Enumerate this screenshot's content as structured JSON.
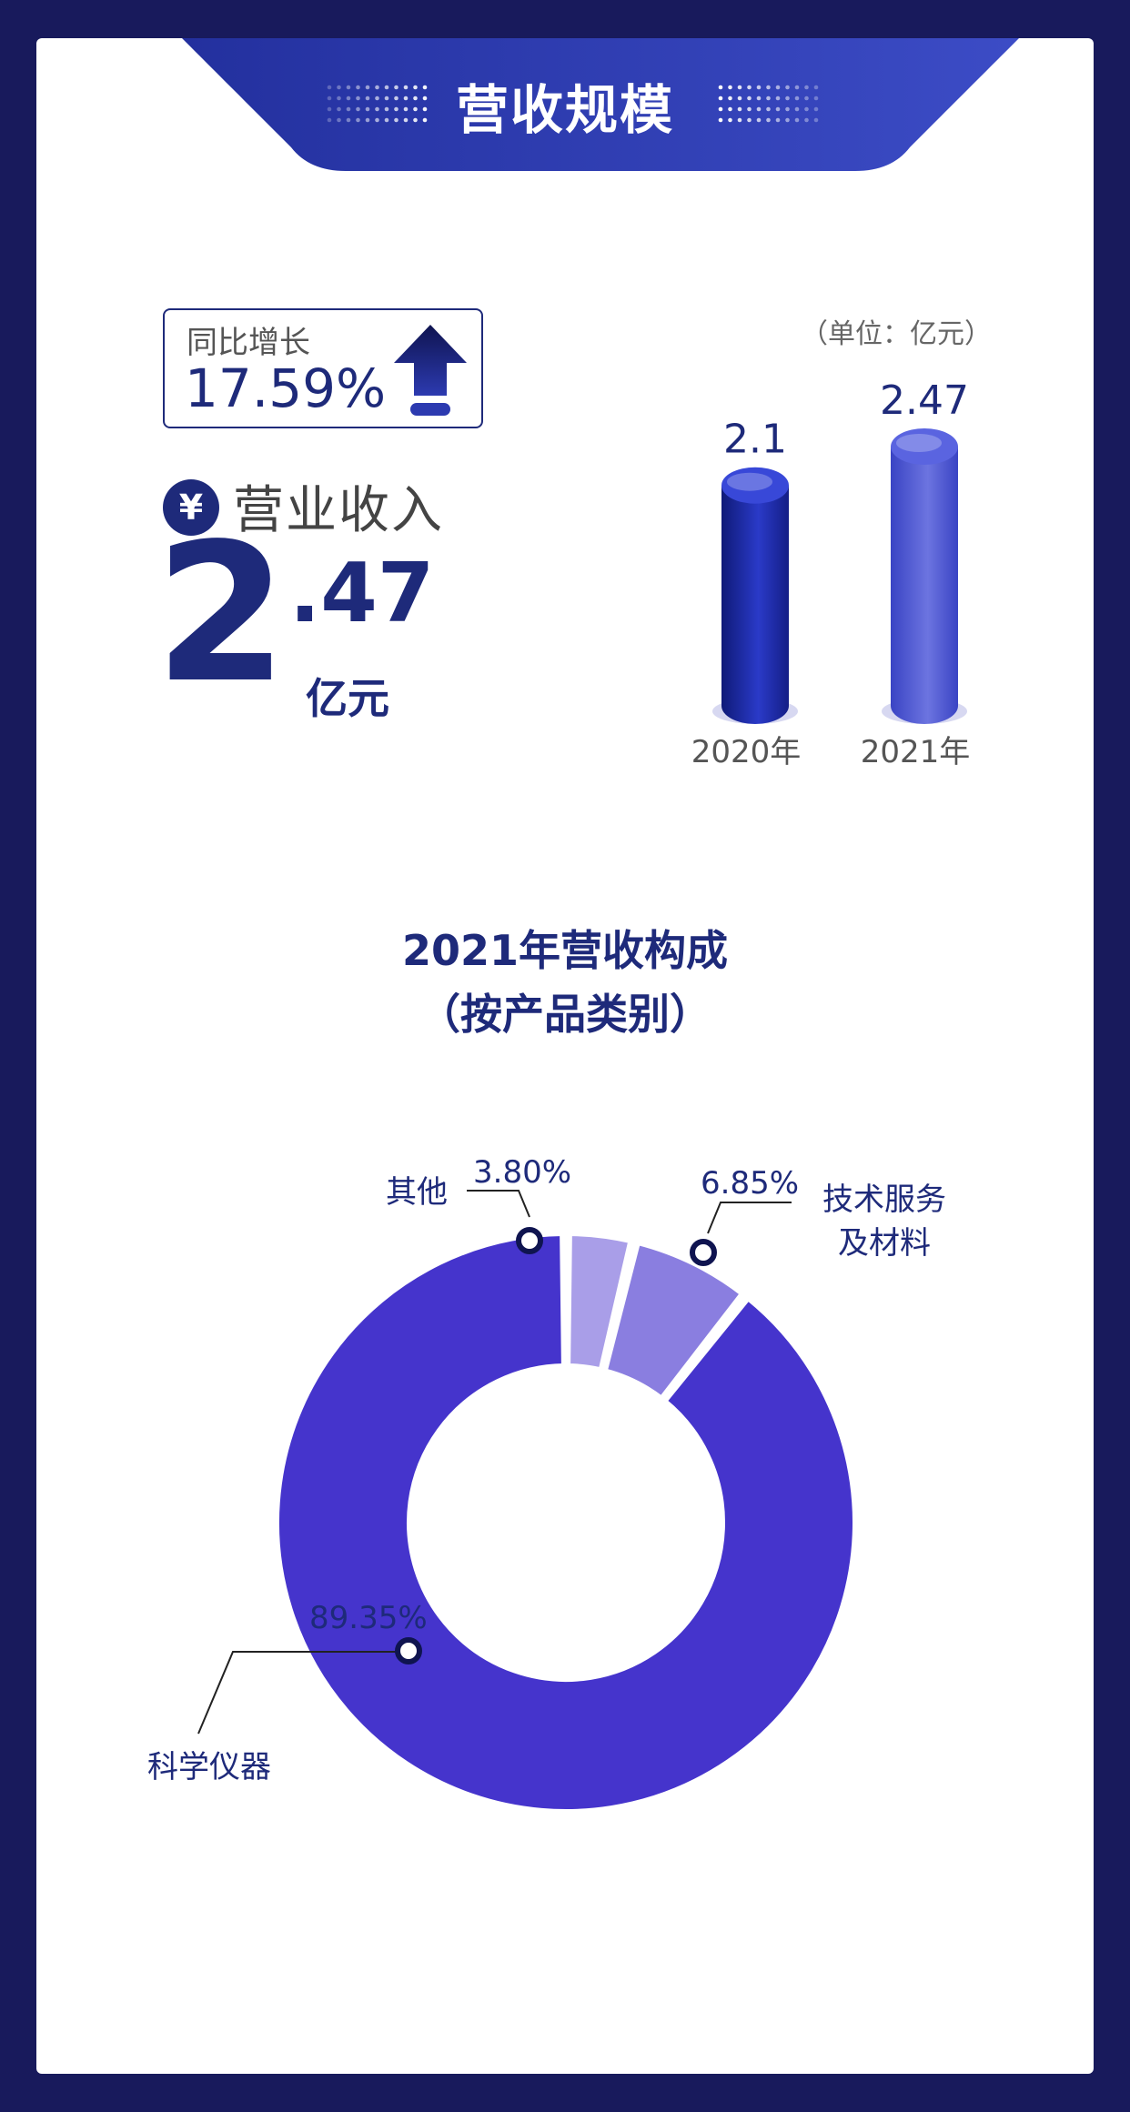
{
  "header": {
    "title": "营收规模"
  },
  "yoy": {
    "label": "同比增长",
    "value": "17.59%"
  },
  "revenue": {
    "label": "营业收入",
    "currency_symbol": "¥",
    "integer": "2",
    "decimal": ".47",
    "unit": "亿元"
  },
  "colors": {
    "navy": "#1e2a7a",
    "frame": "#181a5c",
    "bar_dark": "#1c2ba8",
    "bar_light": "#4850d0",
    "slice_main": "#4534cc",
    "slice_service": "#8a7ee0",
    "slice_other": "#a99ee8"
  },
  "chart_data": [
    {
      "type": "bar",
      "unit_note": "（单位：亿元）",
      "categories": [
        "2020年",
        "2021年"
      ],
      "values": [
        2.1,
        2.47
      ],
      "value_labels": [
        "2.1",
        "2.47"
      ]
    },
    {
      "type": "pie",
      "title": "2021年营收构成",
      "subtitle": "（按产品类别）",
      "slices": [
        {
          "label": "其他",
          "value": 3.8,
          "value_label": "3.80%"
        },
        {
          "label": "技术服务及材料",
          "label_lines": [
            "技术服务",
            "及材料"
          ],
          "value": 6.85,
          "value_label": "6.85%"
        },
        {
          "label": "科学仪器",
          "value": 89.35,
          "value_label": "89.35%"
        }
      ]
    }
  ]
}
